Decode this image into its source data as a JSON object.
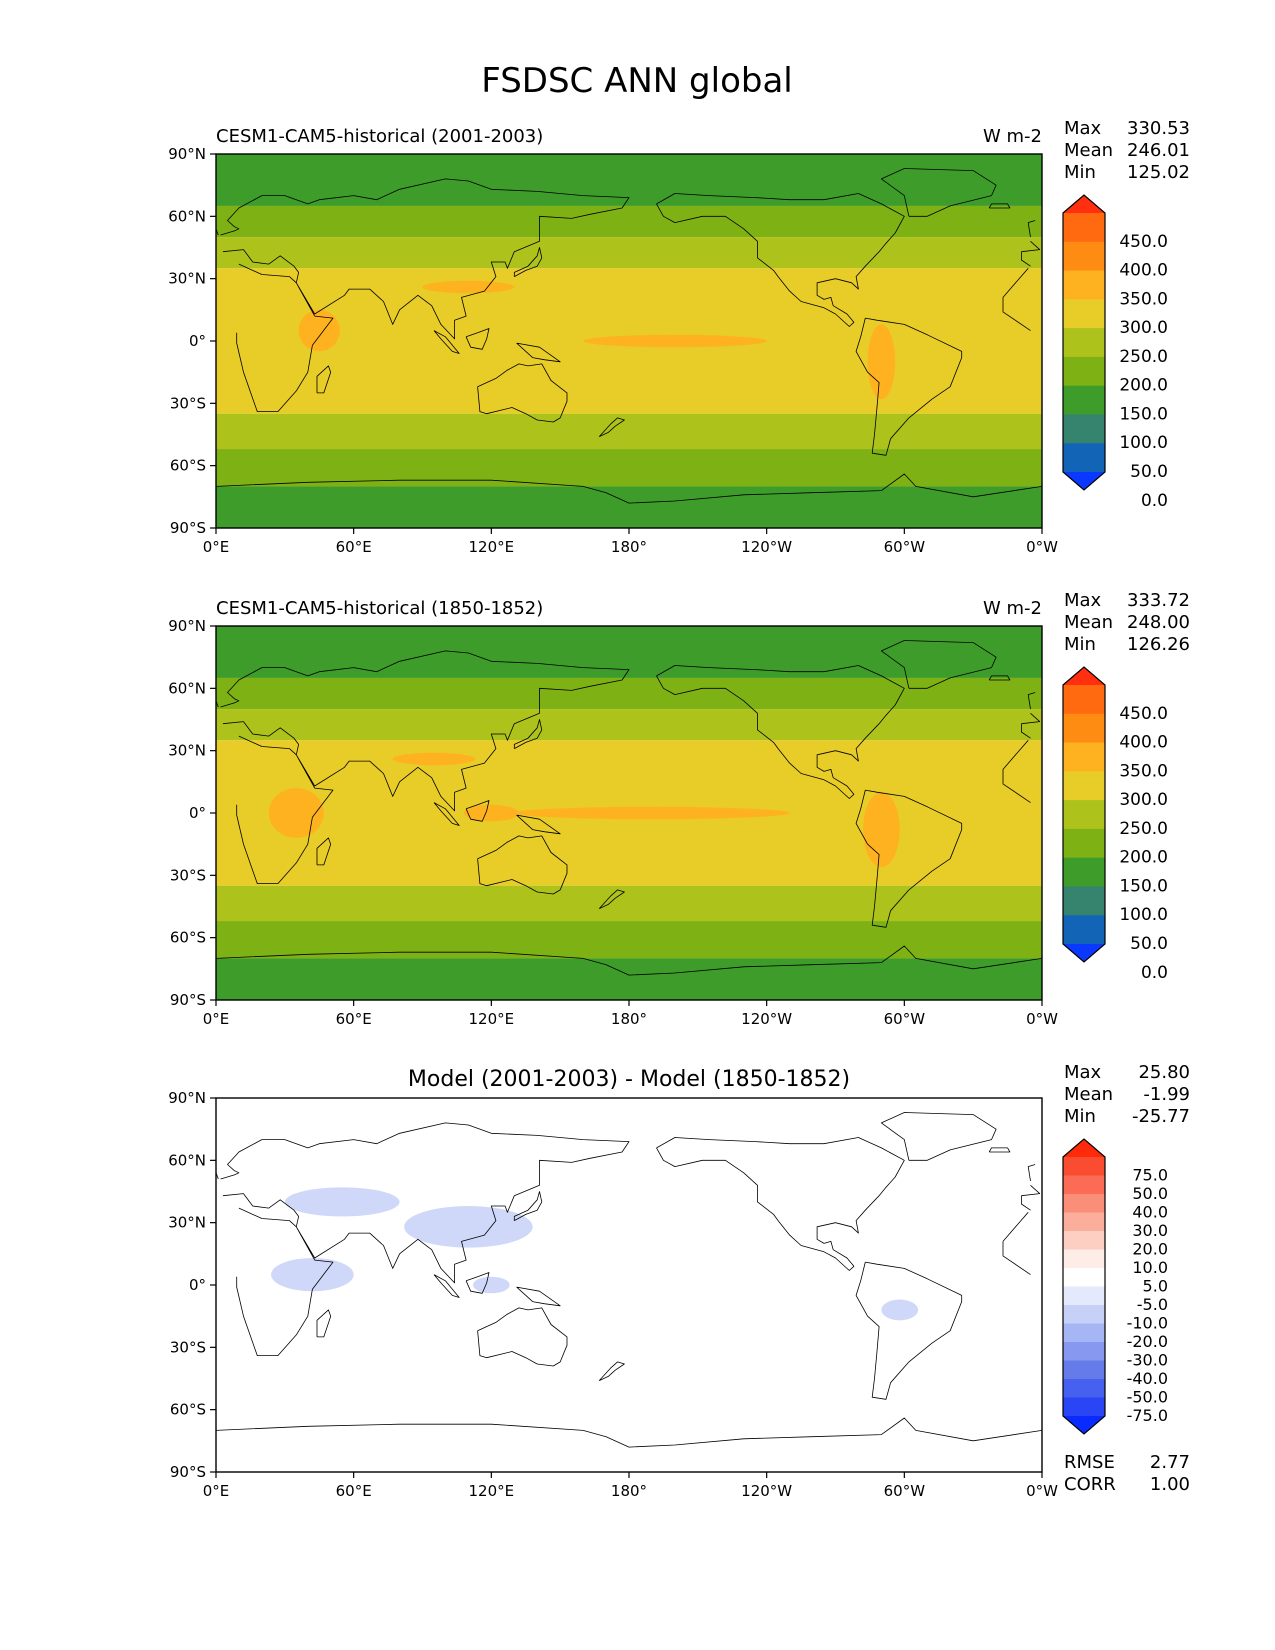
{
  "title": "FSDSC ANN global",
  "x_ticks": [
    "0°E",
    "60°E",
    "120°E",
    "180°",
    "120°W",
    "60°W",
    "0°W"
  ],
  "y_ticks": [
    "90°N",
    "60°N",
    "30°N",
    "0°",
    "30°S",
    "60°S",
    "90°S"
  ],
  "panels": [
    {
      "title_left": "CESM1-CAM5-historical (2001-2003)",
      "title_center": "",
      "units": "W m-2",
      "stats": [
        {
          "label": "Max",
          "value": "330.53"
        },
        {
          "label": "Mean",
          "value": "246.01"
        },
        {
          "label": "Min",
          "value": "125.02"
        }
      ],
      "colorbar": {
        "labels": [
          "450.0",
          "400.0",
          "350.0",
          "300.0",
          "250.0",
          "200.0",
          "150.0",
          "100.0",
          "50.0",
          "0.0"
        ],
        "colors": [
          "#ff2f0f",
          "#ff6a10",
          "#ff8c12",
          "#ffb220",
          "#e8cc28",
          "#aec21c",
          "#7eb214",
          "#3e9c2a",
          "#36836e",
          "#1164b6",
          "#0a38ff"
        ]
      },
      "field": {
        "zonal_bands": [
          {
            "lat_from": 90,
            "lat_to": 65,
            "value": 120
          },
          {
            "lat_from": 65,
            "lat_to": 50,
            "value": 175
          },
          {
            "lat_from": 50,
            "lat_to": 35,
            "value": 225
          },
          {
            "lat_from": 35,
            "lat_to": -35,
            "value": 275
          },
          {
            "lat_from": -35,
            "lat_to": -52,
            "value": 225
          },
          {
            "lat_from": -52,
            "lat_to": -70,
            "value": 175
          },
          {
            "lat_from": -70,
            "lat_to": -90,
            "value": 125
          }
        ],
        "high_regions": [
          {
            "lon": 200,
            "lat": 0,
            "lon_radius": 40,
            "lat_radius": 3,
            "value": 310
          },
          {
            "lon": 45,
            "lat": 5,
            "lon_radius": 9,
            "lat_radius": 10,
            "value": 310
          },
          {
            "lon": 110,
            "lat": 26,
            "lon_radius": 20,
            "lat_radius": 3,
            "value": 310
          },
          {
            "lon": 290,
            "lat": -10,
            "lon_radius": 6,
            "lat_radius": 18,
            "value": 310
          }
        ]
      }
    },
    {
      "title_left": "CESM1-CAM5-historical (1850-1852)",
      "title_center": "",
      "units": "W m-2",
      "stats": [
        {
          "label": "Max",
          "value": "333.72"
        },
        {
          "label": "Mean",
          "value": "248.00"
        },
        {
          "label": "Min",
          "value": "126.26"
        }
      ],
      "colorbar": {
        "labels": [
          "450.0",
          "400.0",
          "350.0",
          "300.0",
          "250.0",
          "200.0",
          "150.0",
          "100.0",
          "50.0",
          "0.0"
        ],
        "colors": [
          "#ff2f0f",
          "#ff6a10",
          "#ff8c12",
          "#ffb220",
          "#e8cc28",
          "#aec21c",
          "#7eb214",
          "#3e9c2a",
          "#36836e",
          "#1164b6",
          "#0a38ff"
        ]
      },
      "field": {
        "zonal_bands": [
          {
            "lat_from": 90,
            "lat_to": 65,
            "value": 120
          },
          {
            "lat_from": 65,
            "lat_to": 50,
            "value": 175
          },
          {
            "lat_from": 50,
            "lat_to": 35,
            "value": 225
          },
          {
            "lat_from": 35,
            "lat_to": -35,
            "value": 275
          },
          {
            "lat_from": -35,
            "lat_to": -52,
            "value": 225
          },
          {
            "lat_from": -52,
            "lat_to": -70,
            "value": 175
          },
          {
            "lat_from": -70,
            "lat_to": -90,
            "value": 125
          }
        ],
        "high_regions": [
          {
            "lon": 190,
            "lat": 0,
            "lon_radius": 60,
            "lat_radius": 3,
            "value": 310
          },
          {
            "lon": 35,
            "lat": 0,
            "lon_radius": 12,
            "lat_radius": 12,
            "value": 310
          },
          {
            "lon": 120,
            "lat": 0,
            "lon_radius": 12,
            "lat_radius": 4,
            "value": 310
          },
          {
            "lon": 95,
            "lat": 26,
            "lon_radius": 18,
            "lat_radius": 3,
            "value": 310
          },
          {
            "lon": 290,
            "lat": -8,
            "lon_radius": 8,
            "lat_radius": 18,
            "value": 310
          }
        ]
      }
    },
    {
      "title_left": "",
      "title_center": "Model (2001-2003) - Model (1850-1852)",
      "units": "",
      "stats": [
        {
          "label": "Max",
          "value": "25.80"
        },
        {
          "label": "Mean",
          "value": "-1.99"
        },
        {
          "label": "Min",
          "value": "-25.77"
        }
      ],
      "colorbar": {
        "labels": [
          "75.0",
          "50.0",
          "40.0",
          "30.0",
          "20.0",
          "10.0",
          "5.0",
          "-5.0",
          "-10.0",
          "-20.0",
          "-30.0",
          "-40.0",
          "-50.0",
          "-75.0"
        ],
        "colors": [
          "#ff2a0a",
          "#f94c30",
          "#fb6b55",
          "#fb8e78",
          "#fcae9d",
          "#fdcfc2",
          "#feede6",
          "#ffffff",
          "#e4e9fb",
          "#c7d1f7",
          "#a6b5f3",
          "#8698ef",
          "#667bea",
          "#4660ef",
          "#2a45f5",
          "#0a2bff"
        ]
      },
      "field": {
        "zonal_bands": [],
        "high_regions": [
          {
            "lon": 42,
            "lat": 5,
            "lon_radius": 18,
            "lat_radius": 8,
            "value": -6
          },
          {
            "lon": 110,
            "lat": 28,
            "lon_radius": 28,
            "lat_radius": 10,
            "value": -6
          },
          {
            "lon": 120,
            "lat": 0,
            "lon_radius": 8,
            "lat_radius": 4,
            "value": -6
          },
          {
            "lon": 55,
            "lat": 40,
            "lon_radius": 25,
            "lat_radius": 7,
            "value": -6
          },
          {
            "lon": 298,
            "lat": -12,
            "lon_radius": 8,
            "lat_radius": 5,
            "value": -6
          }
        ]
      },
      "bottom_stats": [
        {
          "label": "RMSE",
          "value": "2.77"
        },
        {
          "label": "CORR",
          "value": "1.00"
        }
      ]
    }
  ]
}
